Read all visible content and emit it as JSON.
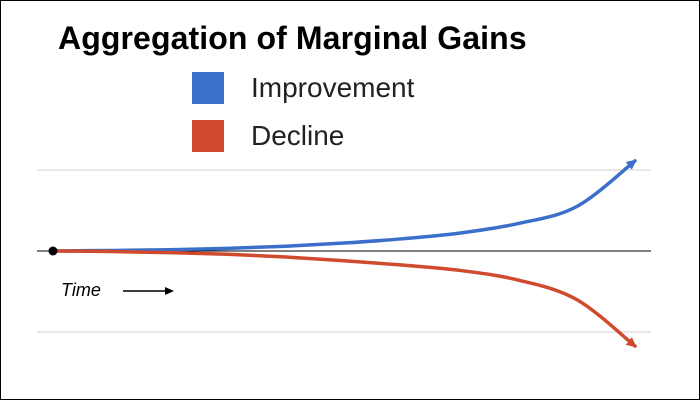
{
  "chart_data": {
    "type": "line",
    "title": "Aggregation of Marginal Gains",
    "xlabel": "Time",
    "ylabel": "",
    "legend_position": "top",
    "grid": true,
    "x": [
      0,
      10,
      20,
      30,
      40,
      50,
      60,
      70,
      80,
      90,
      100
    ],
    "xlim": [
      0,
      100
    ],
    "ylim": [
      -100,
      100
    ],
    "start_point": {
      "x": 0,
      "y": 0
    },
    "series": [
      {
        "name": "Improvement",
        "color": "#3b6fc9",
        "values": [
          0,
          0.5,
          1.2,
          2.5,
          4.5,
          7.5,
          11.5,
          17,
          26,
          42,
          85
        ]
      },
      {
        "name": "Decline",
        "color": "#d04a2e",
        "values": [
          0,
          -0.5,
          -1.5,
          -3,
          -5.5,
          -9,
          -13,
          -18,
          -27,
          -45,
          -88
        ]
      }
    ]
  }
}
